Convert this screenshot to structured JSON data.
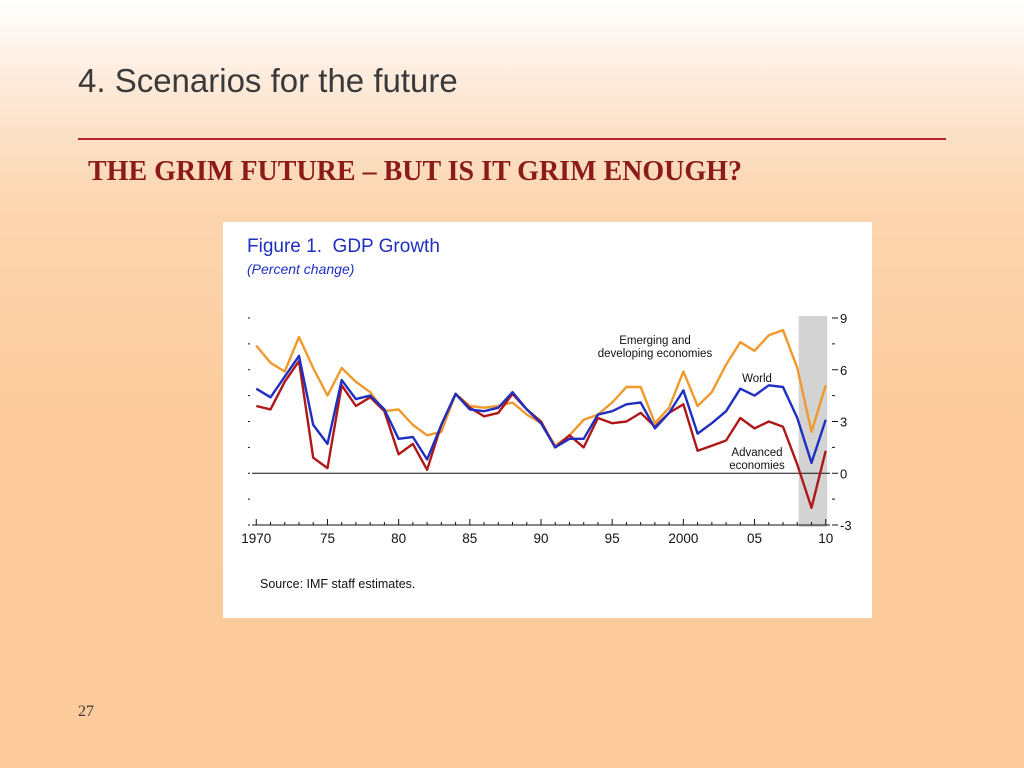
{
  "slide": {
    "title": "4. Scenarios for the future",
    "subtitle": "THE GRIM FUTURE – BUT IS IT GRIM ENOUGH?",
    "page_number": "27"
  },
  "chart_data": {
    "type": "line",
    "title": "Figure 1.  GDP Growth",
    "subtitle": "(Percent change)",
    "source": "Source: IMF staff estimates.",
    "x": [
      1970,
      1971,
      1972,
      1973,
      1974,
      1975,
      1976,
      1977,
      1978,
      1979,
      1980,
      1981,
      1982,
      1983,
      1984,
      1985,
      1986,
      1987,
      1988,
      1989,
      1990,
      1991,
      1992,
      1993,
      1994,
      1995,
      1996,
      1997,
      1998,
      1999,
      2000,
      2001,
      2002,
      2003,
      2004,
      2005,
      2006,
      2007,
      2008,
      2009,
      2010
    ],
    "xlim": [
      1969.7,
      2010.3
    ],
    "x_ticks": [
      1970,
      1975,
      1980,
      1985,
      1990,
      1995,
      2000,
      2005,
      2010
    ],
    "x_tick_labels": [
      "1970",
      "75",
      "80",
      "85",
      "90",
      "95",
      "2000",
      "05",
      "10"
    ],
    "ylim": [
      -3,
      9
    ],
    "y_ticks": [
      -3,
      0,
      3,
      6,
      9
    ],
    "y_tick_labels": [
      "-3",
      "0",
      "3",
      "6",
      "9"
    ],
    "shaded_x_range": [
      2008.1,
      2010.1
    ],
    "series": [
      {
        "name": "Emerging and developing economies",
        "color": "#f0992c",
        "values": [
          7.4,
          6.4,
          5.9,
          7.9,
          6.1,
          4.5,
          6.1,
          5.3,
          4.7,
          3.6,
          3.7,
          2.8,
          2.2,
          2.4,
          4.6,
          3.9,
          3.8,
          3.9,
          4.1,
          3.4,
          2.9,
          1.6,
          2.2,
          3.1,
          3.4,
          4.1,
          5.0,
          5.0,
          2.9,
          3.8,
          5.9,
          3.9,
          4.7,
          6.3,
          7.6,
          7.1,
          8.0,
          8.3,
          6.1,
          2.4,
          5.1
        ]
      },
      {
        "name": "World",
        "color": "#1f2fc0",
        "values": [
          4.9,
          4.4,
          5.6,
          6.8,
          2.8,
          1.7,
          5.4,
          4.3,
          4.5,
          3.7,
          2.0,
          2.1,
          0.8,
          2.8,
          4.6,
          3.7,
          3.6,
          3.8,
          4.7,
          3.7,
          2.9,
          1.5,
          2.0,
          2.0,
          3.4,
          3.6,
          4.0,
          4.1,
          2.6,
          3.5,
          4.8,
          2.3,
          2.9,
          3.6,
          4.9,
          4.5,
          5.1,
          5.0,
          3.2,
          0.6,
          3.1
        ]
      },
      {
        "name": "Advanced economies",
        "color": "#b01818",
        "values": [
          3.9,
          3.7,
          5.3,
          6.5,
          0.9,
          0.3,
          5.1,
          3.9,
          4.4,
          3.6,
          1.1,
          1.7,
          0.2,
          2.8,
          4.6,
          3.8,
          3.3,
          3.5,
          4.6,
          3.7,
          3.0,
          1.5,
          2.2,
          1.5,
          3.2,
          2.9,
          3.0,
          3.5,
          2.7,
          3.5,
          4.0,
          1.3,
          1.6,
          1.9,
          3.2,
          2.6,
          3.0,
          2.7,
          0.5,
          -2.0,
          1.3
        ]
      }
    ],
    "annotations": [
      {
        "lines": [
          "Emerging and",
          "developing economies"
        ]
      },
      {
        "lines": [
          "World"
        ]
      },
      {
        "lines": [
          "Advanced",
          "economies"
        ]
      }
    ],
    "grid": false,
    "zero_line": true
  }
}
